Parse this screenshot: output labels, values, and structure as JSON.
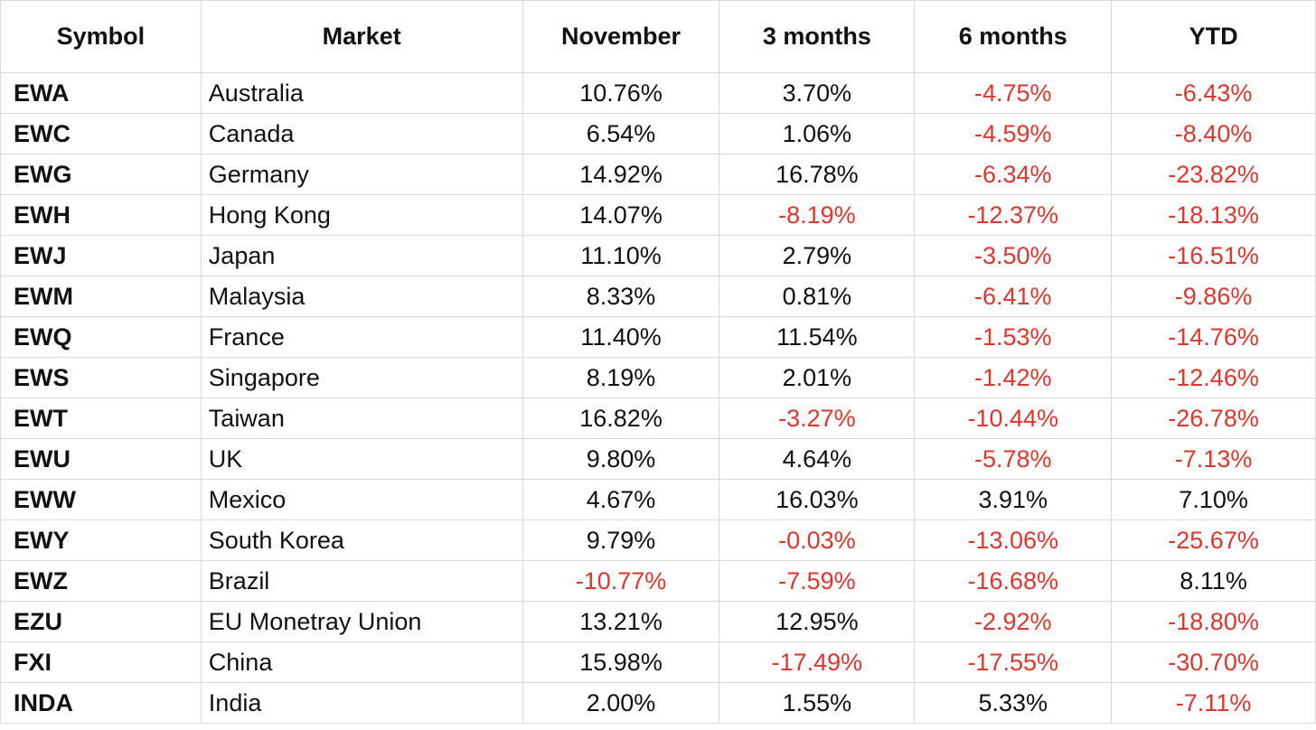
{
  "headers": [
    "Symbol",
    "Market",
    "November",
    "3 months",
    "6 months",
    "YTD"
  ],
  "colors": {
    "negative": "#e0352b",
    "positive": "#111111",
    "grid": "#d9d9d9"
  },
  "rows": [
    {
      "symbol": "EWA",
      "market": "Australia",
      "values": [
        "10.76%",
        "3.70%",
        "-4.75%",
        "-6.43%"
      ]
    },
    {
      "symbol": "EWC",
      "market": "Canada",
      "values": [
        "6.54%",
        "1.06%",
        "-4.59%",
        "-8.40%"
      ]
    },
    {
      "symbol": "EWG",
      "market": "Germany",
      "values": [
        "14.92%",
        "16.78%",
        "-6.34%",
        "-23.82%"
      ]
    },
    {
      "symbol": "EWH",
      "market": "Hong Kong",
      "values": [
        "14.07%",
        "-8.19%",
        "-12.37%",
        "-18.13%"
      ]
    },
    {
      "symbol": "EWJ",
      "market": "Japan",
      "values": [
        "11.10%",
        "2.79%",
        "-3.50%",
        "-16.51%"
      ]
    },
    {
      "symbol": "EWM",
      "market": "Malaysia",
      "values": [
        "8.33%",
        "0.81%",
        "-6.41%",
        "-9.86%"
      ]
    },
    {
      "symbol": "EWQ",
      "market": "France",
      "values": [
        "11.40%",
        "11.54%",
        "-1.53%",
        "-14.76%"
      ]
    },
    {
      "symbol": "EWS",
      "market": "Singapore",
      "values": [
        "8.19%",
        "2.01%",
        "-1.42%",
        "-12.46%"
      ]
    },
    {
      "symbol": "EWT",
      "market": "Taiwan",
      "values": [
        "16.82%",
        "-3.27%",
        "-10.44%",
        "-26.78%"
      ]
    },
    {
      "symbol": "EWU",
      "market": "UK",
      "values": [
        "9.80%",
        "4.64%",
        "-5.78%",
        "-7.13%"
      ]
    },
    {
      "symbol": "EWW",
      "market": "Mexico",
      "values": [
        "4.67%",
        "16.03%",
        "3.91%",
        "7.10%"
      ]
    },
    {
      "symbol": "EWY",
      "market": "South Korea",
      "values": [
        "9.79%",
        "-0.03%",
        "-13.06%",
        "-25.67%"
      ]
    },
    {
      "symbol": "EWZ",
      "market": "Brazil",
      "values": [
        "-10.77%",
        "-7.59%",
        "-16.68%",
        "8.11%"
      ]
    },
    {
      "symbol": "EZU",
      "market": "EU Monetray Union",
      "values": [
        "13.21%",
        "12.95%",
        "-2.92%",
        "-18.80%"
      ]
    },
    {
      "symbol": "FXI",
      "market": "China",
      "values": [
        "15.98%",
        "-17.49%",
        "-17.55%",
        "-30.70%"
      ]
    },
    {
      "symbol": "INDA",
      "market": "India",
      "values": [
        "2.00%",
        "1.55%",
        "5.33%",
        "-7.11%"
      ]
    }
  ]
}
